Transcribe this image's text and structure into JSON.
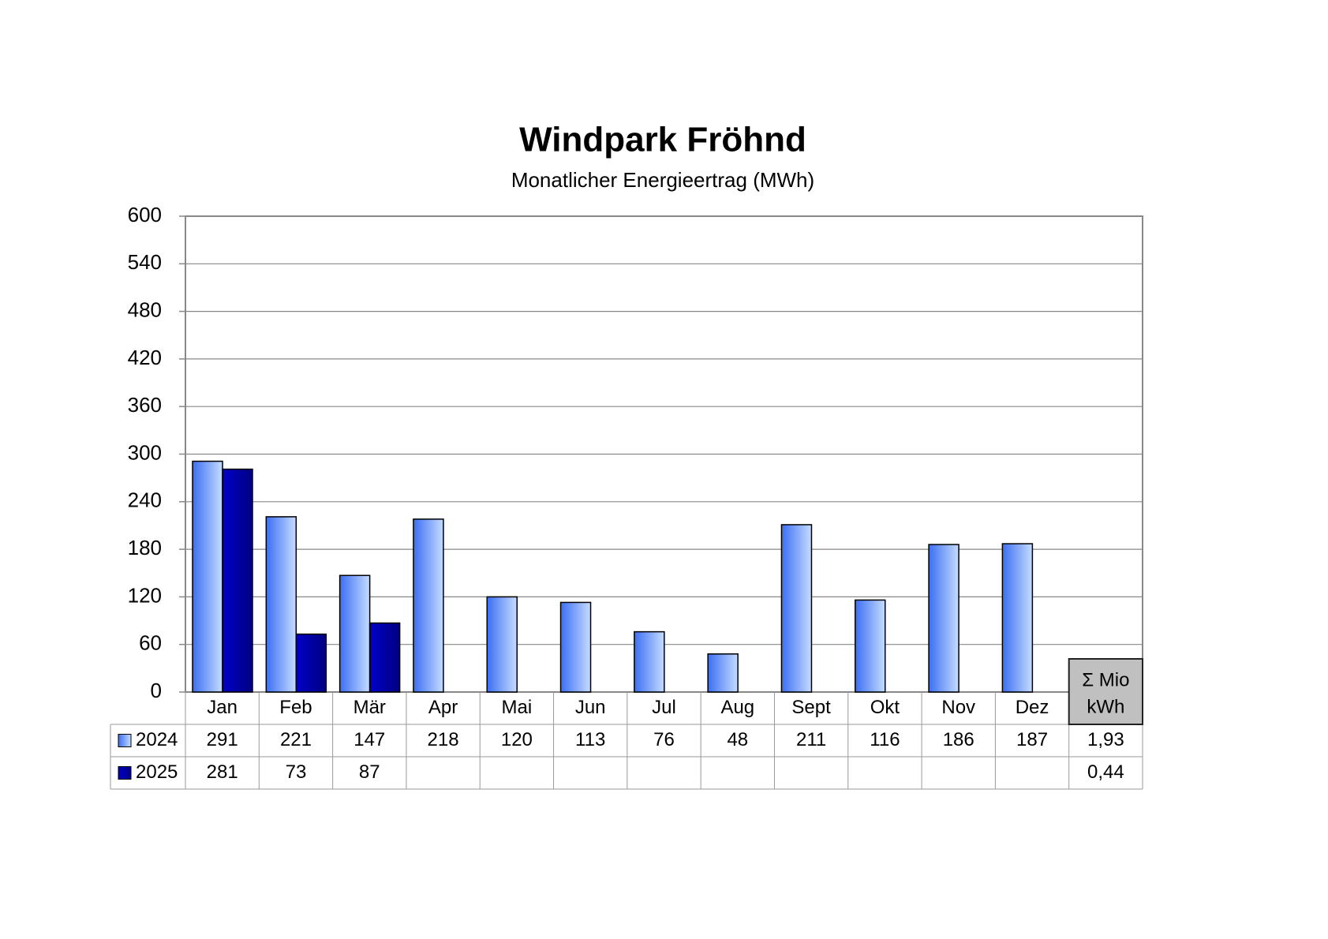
{
  "chart_data": {
    "type": "bar",
    "title": "Windpark Fröhnd",
    "subtitle": "Monatlicher Energieertrag (MWh)",
    "categories": [
      "Jan",
      "Feb",
      "Mär",
      "Apr",
      "Mai",
      "Jun",
      "Jul",
      "Aug",
      "Sept",
      "Okt",
      "Nov",
      "Dez"
    ],
    "series": [
      {
        "name": "2024",
        "color": "#3c6ff2",
        "values": [
          291,
          221,
          147,
          218,
          120,
          113,
          76,
          48,
          211,
          116,
          186,
          187
        ],
        "total": {
          "value": 1.93,
          "label": "1,93"
        }
      },
      {
        "name": "2025",
        "color": "#0000c8",
        "values": [
          281,
          73,
          87,
          null,
          null,
          null,
          null,
          null,
          null,
          null,
          null,
          null
        ],
        "total": {
          "value": 0.44,
          "label": "0,44"
        }
      }
    ],
    "sum_header": [
      "Σ Mio",
      "kWh"
    ],
    "ylim": [
      0,
      600
    ],
    "yticks": [
      0,
      60,
      120,
      180,
      240,
      300,
      360,
      420,
      480,
      540,
      600
    ],
    "grid": true
  }
}
